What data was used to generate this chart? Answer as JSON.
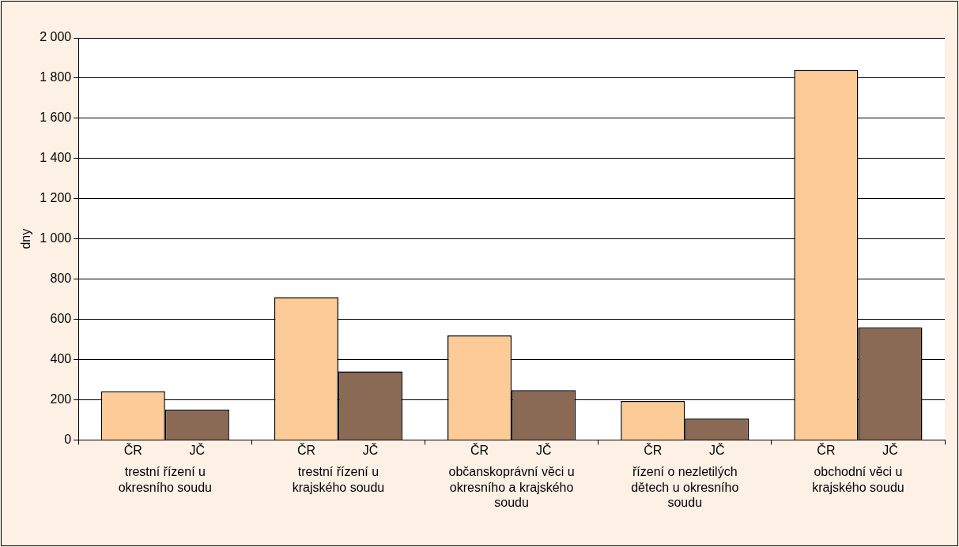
{
  "chart_data": {
    "type": "bar",
    "ylabel": "dny",
    "categories": [
      "trestní řízení u okresního soudu",
      "trestní řízení u krajského soudu",
      "občanskoprávní věci u okresního a krajského soudu",
      "řízení o nezletilých dětech u okresního soudu",
      "obchodní věci u krajského soudu"
    ],
    "series": [
      {
        "name": "ČR",
        "color": "#fccb98",
        "values": [
          242,
          710,
          520,
          194,
          1840
        ]
      },
      {
        "name": "JČ",
        "color": "#8a6a55",
        "values": [
          151,
          341,
          248,
          107,
          560
        ]
      }
    ],
    "ylim": [
      0,
      2000
    ],
    "yticks": [
      0,
      200,
      400,
      600,
      800,
      {
        "value": 1000,
        "label": "1 000"
      },
      {
        "value": 1200,
        "label": "1 200"
      },
      {
        "value": 1400,
        "label": "1 400"
      },
      {
        "value": 1600,
        "label": "1 600"
      },
      {
        "value": 1800,
        "label": "1 800"
      },
      {
        "value": 2000,
        "label": "2 000"
      }
    ],
    "grid": "y",
    "legend": false
  }
}
